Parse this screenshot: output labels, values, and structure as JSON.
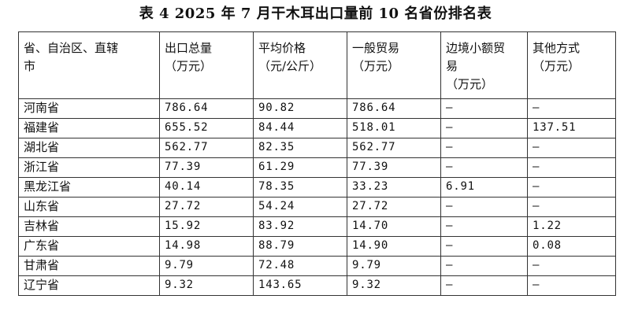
{
  "title": "表 4  2025 年 7 月干木耳出口量前 10 名省份排名表",
  "headers": [
    [
      "省、自治区、直辖",
      "市"
    ],
    [
      "出口总量",
      "（万元）"
    ],
    [
      "平均价格",
      "（元/公斤）"
    ],
    [
      "一般贸易",
      "（万元）"
    ],
    [
      "边境小额贸",
      "易",
      "（万元）"
    ],
    [
      "其他方式",
      "（万元）"
    ]
  ],
  "rows": [
    [
      "河南省",
      "786.64",
      "90.82",
      "786.64",
      "–",
      "–"
    ],
    [
      "福建省",
      "655.52",
      "84.44",
      "518.01",
      "–",
      "137.51"
    ],
    [
      "湖北省",
      "562.77",
      "82.35",
      "562.77",
      "–",
      "–"
    ],
    [
      "浙江省",
      "77.39",
      "61.29",
      "77.39",
      "–",
      "–"
    ],
    [
      "黑龙江省",
      "40.14",
      "78.35",
      "33.23",
      "6.91",
      "–"
    ],
    [
      "山东省",
      "27.72",
      "54.24",
      "27.72",
      "–",
      "–"
    ],
    [
      "吉林省",
      "15.92",
      "83.92",
      "14.70",
      "–",
      "1.22"
    ],
    [
      "广东省",
      "14.98",
      "88.79",
      "14.90",
      "–",
      "0.08"
    ],
    [
      "甘肃省",
      "9.79",
      "72.48",
      "9.79",
      "–",
      "–"
    ],
    [
      "辽宁省",
      "9.32",
      "143.65",
      "9.32",
      "–",
      "–"
    ]
  ]
}
